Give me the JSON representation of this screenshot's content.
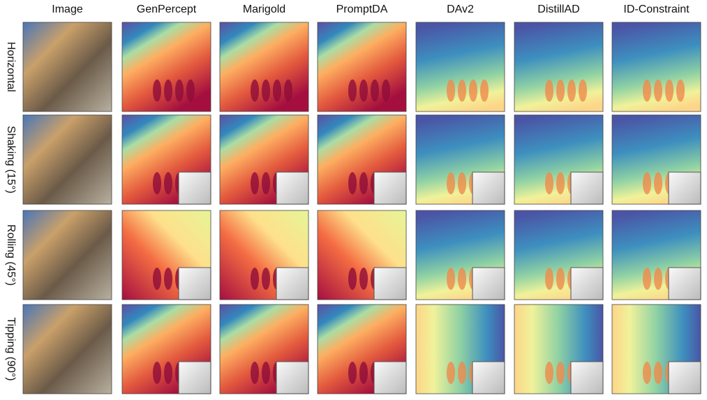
{
  "columns": [
    "Image",
    "GenPercept",
    "Marigold",
    "PromptDA",
    "DAv2",
    "DistillAD",
    "ID-Constraint"
  ],
  "rows": [
    "Horizontal",
    "Shaking (15°)",
    "Rolling (45°)",
    "Tipping (90°)"
  ]
}
